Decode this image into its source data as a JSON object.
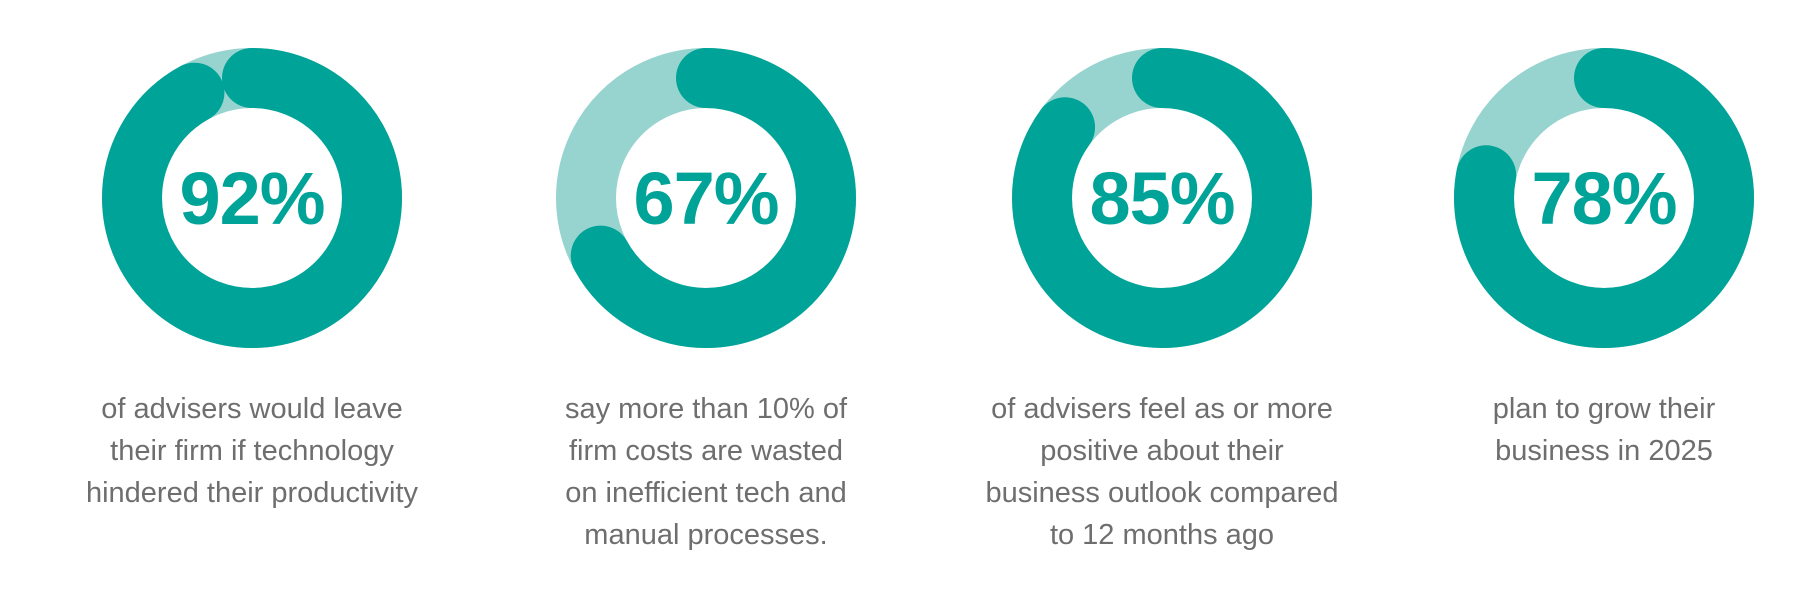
{
  "colors": {
    "accent": "#00a398",
    "track": "#98d4cf",
    "caption": "#6e6e6e"
  },
  "chart_data": [
    {
      "type": "pie",
      "value_label": "92%",
      "values": [
        92,
        8
      ],
      "caption": "of advisers would leave\ntheir firm if technology\nhindered their productivity"
    },
    {
      "type": "pie",
      "value_label": "67%",
      "values": [
        67,
        33
      ],
      "caption": "say more than 10% of\nfirm costs are wasted\non inefficient tech and\nmanual processes."
    },
    {
      "type": "pie",
      "value_label": "85%",
      "values": [
        85,
        15
      ],
      "caption": "of advisers feel as or more\npositive about their\nbusiness outlook compared\nto 12 months ago"
    },
    {
      "type": "pie",
      "value_label": "78%",
      "values": [
        78,
        22
      ],
      "caption": "plan to grow their\nbusiness in 2025"
    }
  ]
}
